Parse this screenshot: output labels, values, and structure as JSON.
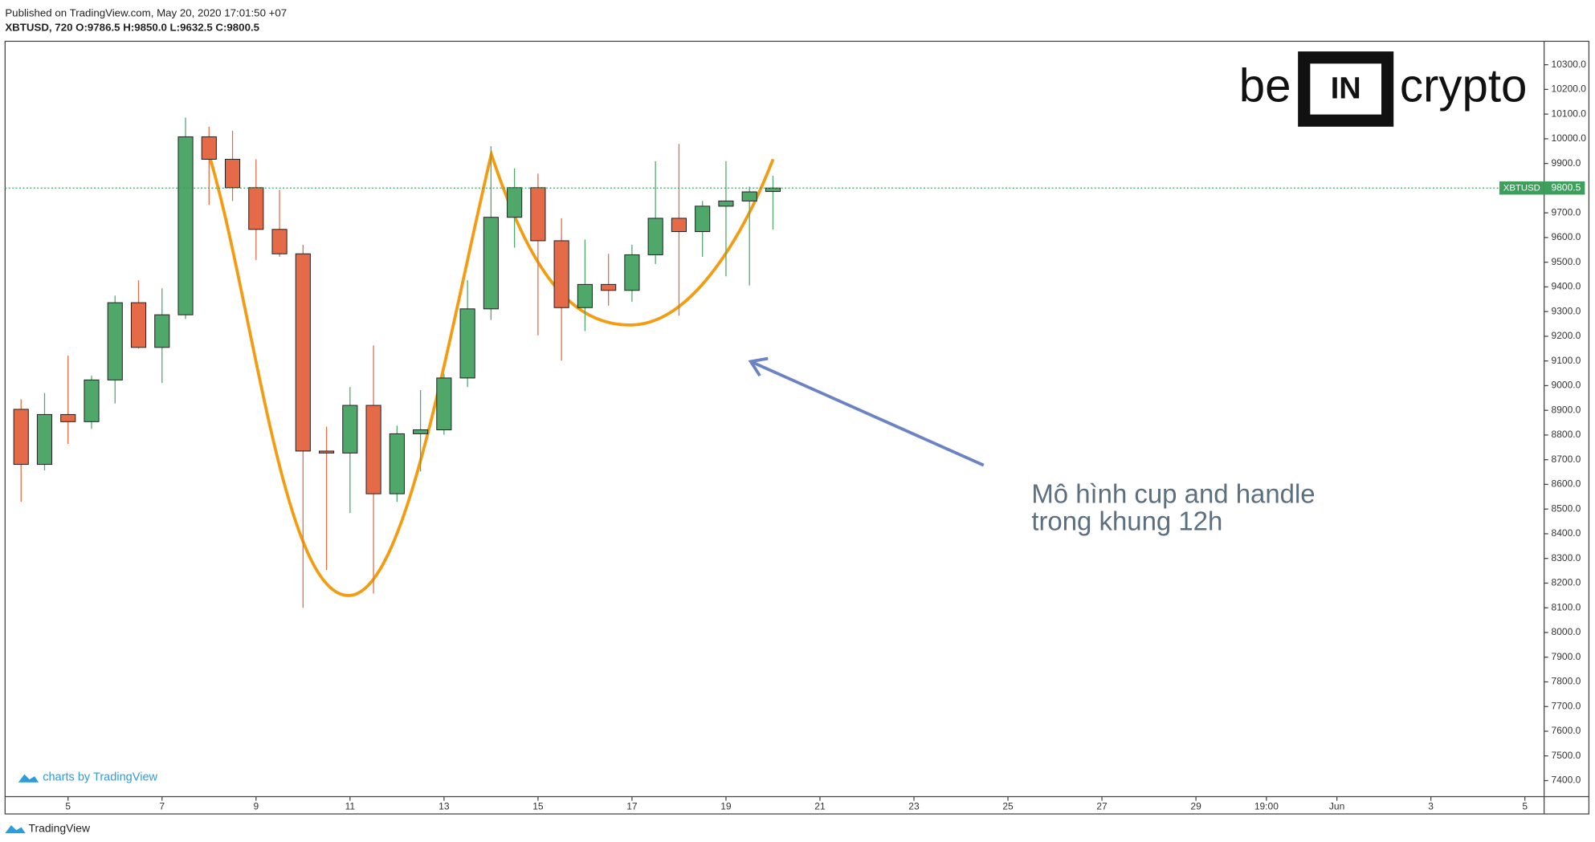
{
  "header": {
    "published": "Published on TradingView.com, May 20, 2020 17:01:50 +07",
    "legend_text": "XBTUSD, 720 O:9786.5 H:9850.0 L:9632.5 C:9800.5"
  },
  "logo": {
    "left": "be",
    "middle": "IN",
    "right": "crypto"
  },
  "annotation": {
    "line1": "Mô hình cup and handle",
    "line2": "trong khung 12h"
  },
  "branding": "charts by TradingView",
  "footer": "TradingView",
  "chart_data": {
    "type": "candlestick",
    "up_color": "#4fa86a",
    "down_color": "#e56a47",
    "x": [
      4,
      4.5,
      5,
      5.5,
      6,
      6.5,
      7,
      7.5,
      8,
      8.5,
      9,
      9.5,
      10,
      10.5,
      11,
      11.5,
      12,
      12.5,
      13,
      13.5,
      14,
      14.5,
      15,
      15.5,
      16,
      16.5,
      17,
      17.5,
      18,
      18.5,
      19,
      19.5,
      20
    ],
    "open": [
      8904,
      8681,
      8883,
      8854,
      9023,
      9336,
      9155,
      9287,
      10008,
      9917,
      9802,
      9633,
      9534,
      8735,
      8727,
      8920,
      8562,
      8805,
      8821,
      9031,
      9311,
      9682,
      9802,
      9587,
      9316,
      9410,
      9386,
      9530,
      9678,
      9624,
      9727,
      9748,
      9786.5
    ],
    "high": [
      8945,
      8970,
      9122,
      9040,
      9365,
      9427,
      9394,
      10086,
      10049,
      10032,
      9917,
      9793,
      9571,
      8834,
      8994,
      9163,
      8838,
      8982,
      9048,
      9427,
      9970,
      9880,
      9859,
      9678,
      9592,
      9534,
      9571,
      9909,
      9979,
      9748,
      9909,
      9806,
      9850
    ],
    "low": [
      8529,
      8657,
      8764,
      8825,
      8928,
      9150,
      9011,
      9270,
      9732,
      9748,
      9509,
      9522,
      8100,
      8253,
      8484,
      8158,
      8529,
      8652,
      8801,
      8994,
      9266,
      9559,
      9204,
      9101,
      9221,
      9324,
      9340,
      9493,
      9283,
      9522,
      9443,
      9406,
      9632.5
    ],
    "close": [
      8681,
      8883,
      8854,
      9023,
      9336,
      9155,
      9287,
      10008,
      9917,
      9802,
      9633,
      9534,
      8735,
      8727,
      8920,
      8562,
      8805,
      8821,
      9031,
      9311,
      9682,
      9802,
      9587,
      9316,
      9410,
      9386,
      9530,
      9678,
      9624,
      9727,
      9748,
      9785,
      9800.5
    ],
    "xlim": [
      3.66,
      36.41
    ],
    "xticks": [
      5,
      7,
      9,
      11,
      13,
      15,
      17,
      19,
      21,
      23,
      25,
      27,
      29,
      {
        "value": 30.5,
        "label": "19:00"
      },
      {
        "value": 32,
        "label": "Jun"
      },
      {
        "value": 34,
        "label": "3"
      },
      {
        "value": 36,
        "label": "5"
      }
    ],
    "ylim": [
      7335,
      10395
    ],
    "yticks": [
      {
        "value": 7400,
        "label": "7400.0"
      },
      {
        "value": 7500,
        "label": "7500.0"
      },
      {
        "value": 7600,
        "label": "7600.0"
      },
      {
        "value": 7700,
        "label": "7700.0"
      },
      {
        "value": 7800,
        "label": "7800.0"
      },
      {
        "value": 7900,
        "label": "7900.0"
      },
      {
        "value": 8000,
        "label": "8000.0"
      },
      {
        "value": 8100,
        "label": "8100.0"
      },
      {
        "value": 8200,
        "label": "8200.0"
      },
      {
        "value": 8300,
        "label": "8300.0"
      },
      {
        "value": 8400,
        "label": "8400.0"
      },
      {
        "value": 8500,
        "label": "8500.0"
      },
      {
        "value": 8600,
        "label": "8600.0"
      },
      {
        "value": 8700,
        "label": "8700.0"
      },
      {
        "value": 8800,
        "label": "8800.0"
      },
      {
        "value": 8900,
        "label": "8900.0"
      },
      {
        "value": 9000,
        "label": "9000.0"
      },
      {
        "value": 9100,
        "label": "9100.0"
      },
      {
        "value": 9200,
        "label": "9200.0"
      },
      {
        "value": 9300,
        "label": "9300.0"
      },
      {
        "value": 9400,
        "label": "9400.0"
      },
      {
        "value": 9500,
        "label": "9500.0"
      },
      {
        "value": 9600,
        "label": "9600.0"
      },
      {
        "value": 9700,
        "label": "9700.0"
      },
      {
        "value": 9800,
        "label": "9800.0"
      },
      {
        "value": 9900,
        "label": "9900.0"
      },
      {
        "value": 10000,
        "label": "10000.0"
      },
      {
        "value": 10100,
        "label": "10100.0"
      },
      {
        "value": 10200,
        "label": "10200.0"
      },
      {
        "value": 10300,
        "label": "10300.0"
      }
    ],
    "last_price": {
      "label": "XBTUSD",
      "value": 9800.5,
      "color": "#3c9f5c"
    }
  }
}
